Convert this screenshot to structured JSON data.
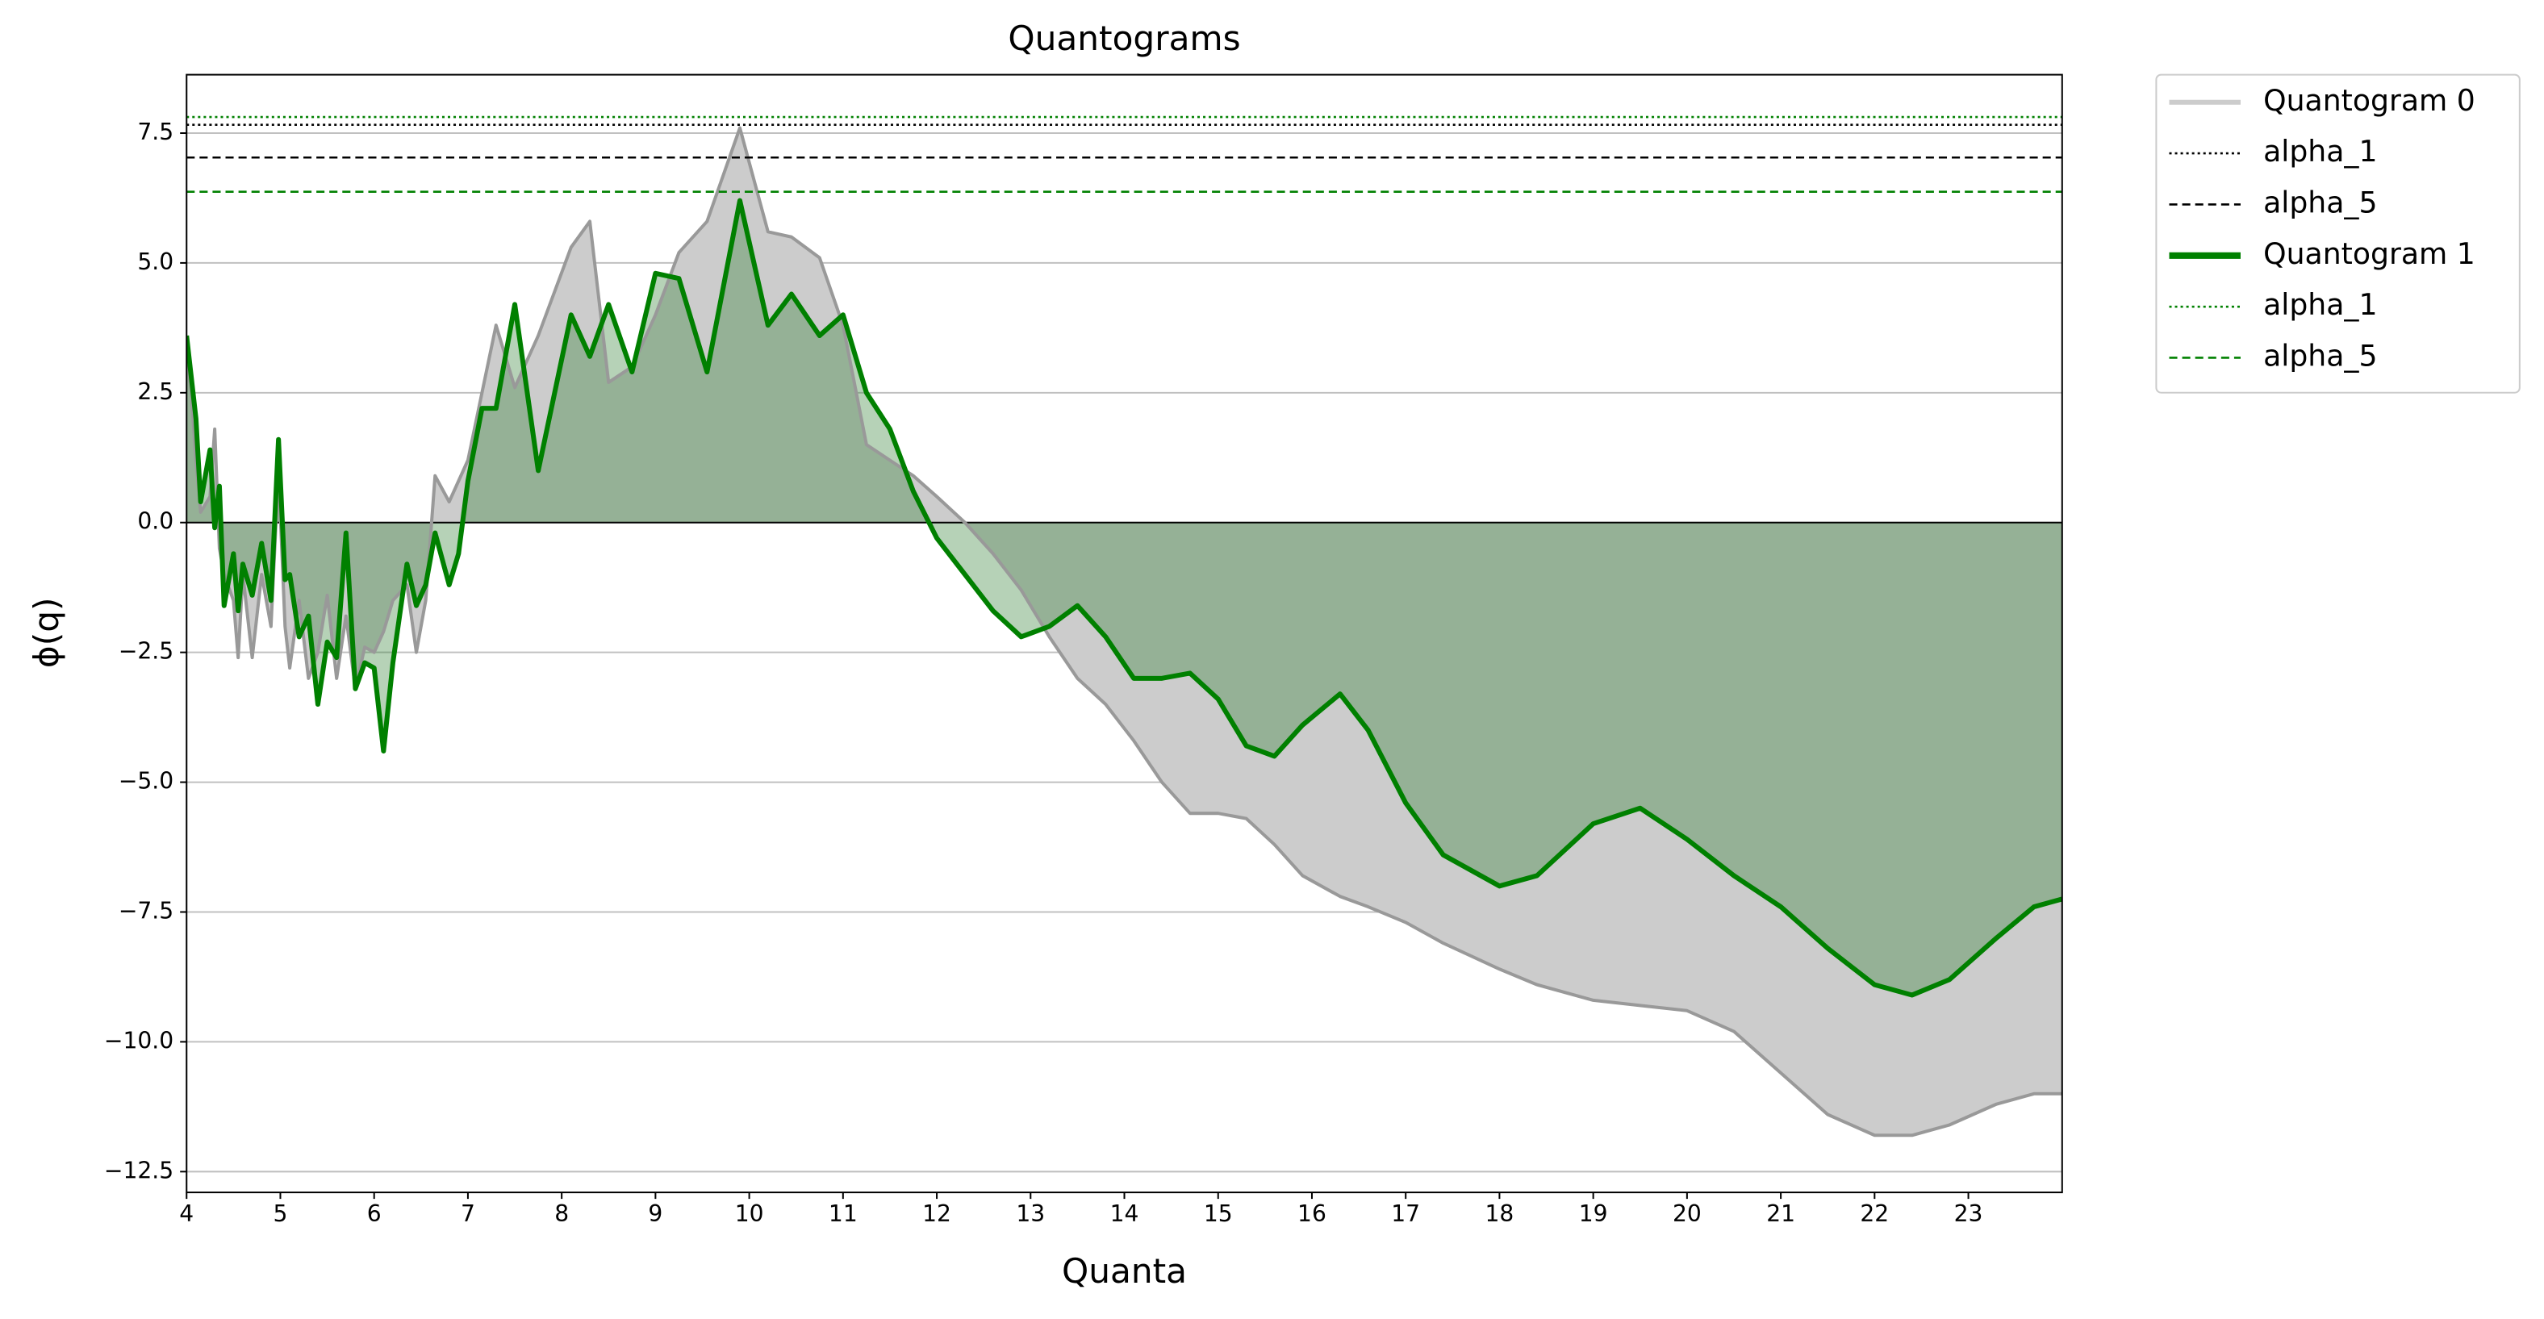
{
  "chart_data": {
    "type": "line",
    "title": "Quantograms",
    "xlabel": "Quanta",
    "ylabel": "ϕ(q)",
    "x": [
      4.0,
      4.05,
      4.1,
      4.15,
      4.25,
      4.3,
      4.35,
      4.4,
      4.5,
      4.55,
      4.6,
      4.7,
      4.8,
      4.9,
      4.98,
      5.05,
      5.1,
      5.2,
      5.3,
      5.4,
      5.5,
      5.6,
      5.7,
      5.8,
      5.9,
      6.0,
      6.1,
      6.2,
      6.35,
      6.45,
      6.55,
      6.65,
      6.8,
      6.9,
      7.0,
      7.15,
      7.3,
      7.5,
      7.75,
      8.1,
      8.3,
      8.5,
      8.75,
      9.0,
      9.25,
      9.55,
      9.9,
      10.2,
      10.45,
      10.75,
      11.0,
      11.25,
      11.5,
      11.75,
      12.0,
      12.3,
      12.6,
      12.9,
      13.2,
      13.5,
      13.8,
      14.1,
      14.4,
      14.7,
      15.0,
      15.3,
      15.6,
      15.9,
      16.3,
      16.6,
      17.0,
      17.4,
      18.0,
      18.4,
      19.0,
      19.5,
      20.0,
      20.5,
      21.0,
      21.5,
      22.0,
      22.4,
      22.8,
      23.3,
      23.7,
      24.0
    ],
    "series": [
      {
        "name": "Quantogram 0",
        "color": "#999999",
        "legend_color": "#cccccc",
        "fill": "#cccccc",
        "fill_opacity": 1,
        "width": 2,
        "values": [
          3.3,
          2.5,
          1.2,
          0.2,
          0.5,
          1.8,
          -0.5,
          -1.0,
          -1.5,
          -2.6,
          -1.0,
          -2.6,
          -1.0,
          -2.0,
          1.0,
          -2.0,
          -2.8,
          -1.5,
          -3.0,
          -2.5,
          -1.4,
          -3.0,
          -1.8,
          -3.2,
          -2.4,
          -2.5,
          -2.1,
          -1.5,
          -1.2,
          -2.5,
          -1.5,
          0.9,
          0.4,
          0.8,
          1.2,
          2.5,
          3.8,
          2.6,
          3.6,
          5.3,
          5.8,
          2.7,
          3.0,
          4.0,
          5.2,
          5.8,
          7.6,
          5.6,
          5.5,
          5.1,
          3.8,
          1.5,
          1.2,
          0.9,
          0.5,
          0.0,
          -0.6,
          -1.3,
          -2.2,
          -3.0,
          -3.5,
          -4.2,
          -5.0,
          -5.6,
          -5.6,
          -5.7,
          -6.2,
          -6.8,
          -7.2,
          -7.4,
          -7.7,
          -8.1,
          -8.6,
          -8.9,
          -9.2,
          -9.3,
          -9.4,
          -9.8,
          -10.6,
          -11.4,
          -11.8,
          -11.8,
          -11.6,
          -11.2,
          -11.0,
          -11.0
        ],
        "lines": [
          {
            "name": "alpha_1",
            "value": 7.66,
            "dash": "dotted",
            "color": "#000000"
          },
          {
            "name": "alpha_5",
            "value": 7.03,
            "dash": "dashed",
            "color": "#000000"
          }
        ]
      },
      {
        "name": "Quantogram 1",
        "color": "#008000",
        "legend_color": "#008000",
        "fill": "#2e7d32",
        "fill_opacity": 0.35,
        "width": 3,
        "values": [
          3.6,
          2.8,
          2.0,
          0.4,
          1.4,
          -0.1,
          0.7,
          -1.6,
          -0.6,
          -1.7,
          -0.8,
          -1.4,
          -0.4,
          -1.5,
          1.6,
          -1.1,
          -1.0,
          -2.2,
          -1.8,
          -3.5,
          -2.3,
          -2.6,
          -0.2,
          -3.2,
          -2.7,
          -2.8,
          -4.4,
          -2.7,
          -0.8,
          -1.6,
          -1.2,
          -0.2,
          -1.2,
          -0.6,
          0.8,
          2.2,
          2.2,
          4.2,
          1.0,
          4.0,
          3.2,
          4.2,
          2.9,
          4.8,
          4.7,
          2.9,
          6.2,
          3.8,
          4.4,
          3.6,
          4.0,
          2.5,
          1.8,
          0.6,
          -0.3,
          -1.0,
          -1.7,
          -2.2,
          -2.0,
          -1.6,
          -2.2,
          -3.0,
          -3.0,
          -2.9,
          -3.4,
          -4.3,
          -4.5,
          -3.9,
          -3.3,
          -4.0,
          -5.4,
          -6.4,
          -7.0,
          -6.8,
          -5.8,
          -5.5,
          -6.1,
          -6.8,
          -7.4,
          -8.2,
          -8.9,
          -9.1,
          -8.8,
          -8.0,
          -7.4,
          -7.25
        ],
        "lines": [
          {
            "name": "alpha_1",
            "value": 7.81,
            "dash": "dotted",
            "color": "#008000"
          },
          {
            "name": "alpha_5",
            "value": 6.37,
            "dash": "dashed",
            "color": "#008000"
          }
        ]
      }
    ],
    "xlim": [
      4,
      24
    ],
    "ylim": [
      -12.9,
      8.625
    ],
    "xticks": [
      4,
      5,
      6,
      7,
      8,
      9,
      10,
      11,
      12,
      13,
      14,
      15,
      16,
      17,
      18,
      19,
      20,
      21,
      22,
      23
    ],
    "yticks": [
      {
        "value": -12.5,
        "label": "−12.5"
      },
      {
        "value": -10,
        "label": "−10.0"
      },
      {
        "value": -7.5,
        "label": "−7.5"
      },
      {
        "value": -5,
        "label": "−5.0"
      },
      {
        "value": -2.5,
        "label": "−2.5"
      },
      {
        "value": 0,
        "label": "0.0"
      },
      2.5,
      {
        "value": 5,
        "label": "5.0"
      },
      7.5
    ],
    "grid": "y",
    "zero_line": true,
    "legend": "outside right"
  }
}
